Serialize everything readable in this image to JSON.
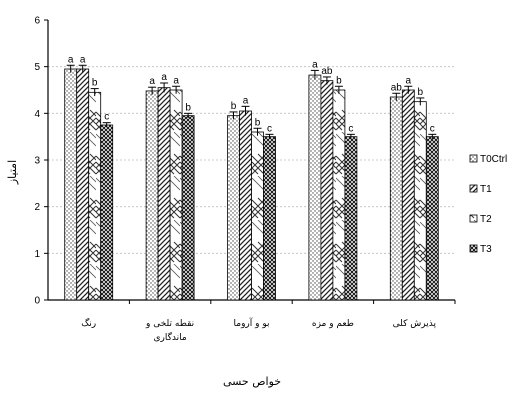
{
  "chart_data": {
    "type": "bar",
    "xlabel": "خواص حسی",
    "ylabel": "امتیاز",
    "ylim": [
      0,
      6
    ],
    "yticks": [
      0,
      1,
      2,
      3,
      4,
      5,
      6
    ],
    "categories": [
      "رنگ",
      "نقطه تلخی و ماندگاری",
      "بو و آروما",
      "طعم و مزه",
      "پذیرش کلی"
    ],
    "categories_wrapped": [
      [
        "رنگ"
      ],
      [
        "نقطه تلخی و",
        "ماندگاری"
      ],
      [
        "بو و آروما"
      ],
      [
        "طعم و مزه"
      ],
      [
        "پذیرش کلی"
      ]
    ],
    "grid": true,
    "legend_position": "right",
    "series": [
      {
        "name": "T0(Ctrl)",
        "pattern": "dots",
        "values": [
          4.95,
          4.48,
          3.95,
          4.82,
          4.35
        ],
        "errors": [
          0.08,
          0.08,
          0.08,
          0.1,
          0.08
        ],
        "letters": [
          "a",
          "a",
          "b",
          "a",
          "ab"
        ]
      },
      {
        "name": "T1",
        "pattern": "diag",
        "values": [
          4.95,
          4.55,
          4.05,
          4.7,
          4.5
        ],
        "errors": [
          0.08,
          0.1,
          0.1,
          0.08,
          0.08
        ],
        "letters": [
          "a",
          "a",
          "a",
          "ab",
          "a"
        ]
      },
      {
        "name": "T2",
        "pattern": "check",
        "values": [
          4.45,
          4.5,
          3.6,
          4.5,
          4.25
        ],
        "errors": [
          0.08,
          0.08,
          0.08,
          0.08,
          0.08
        ],
        "letters": [
          "b",
          "a",
          "b",
          "b",
          "b"
        ]
      },
      {
        "name": "T3",
        "pattern": "cross",
        "values": [
          3.75,
          3.95,
          3.5,
          3.5,
          3.5
        ],
        "errors": [
          0.05,
          0.05,
          0.05,
          0.05,
          0.05
        ],
        "letters": [
          "c",
          "b",
          "c",
          "c",
          "c"
        ]
      }
    ],
    "legend_labels": [
      "T0Ctrl",
      "T1",
      "T2",
      "T3"
    ]
  }
}
